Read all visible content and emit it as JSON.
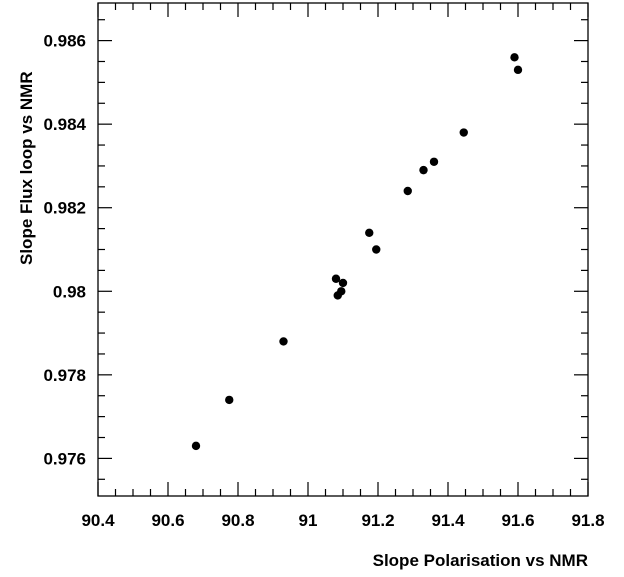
{
  "chart_data": {
    "type": "scatter",
    "title": "",
    "xlabel": "Slope Polarisation vs NMR",
    "ylabel": "Slope Flux loop vs NMR",
    "xlim": [
      90.4,
      91.8
    ],
    "ylim": [
      0.9751,
      0.9869
    ],
    "x_ticks": [
      {
        "value": 90.4,
        "label": "90.4"
      },
      {
        "value": 90.6,
        "label": "90.6"
      },
      {
        "value": 90.8,
        "label": "90.8"
      },
      {
        "value": 91.0,
        "label": "91"
      },
      {
        "value": 91.2,
        "label": "91.2"
      },
      {
        "value": 91.4,
        "label": "91.4"
      },
      {
        "value": 91.6,
        "label": "91.6"
      },
      {
        "value": 91.8,
        "label": "91.8"
      }
    ],
    "y_ticks": [
      {
        "value": 0.976,
        "label": "0.976"
      },
      {
        "value": 0.978,
        "label": "0.978"
      },
      {
        "value": 0.98,
        "label": "0.98"
      },
      {
        "value": 0.982,
        "label": "0.982"
      },
      {
        "value": 0.984,
        "label": "0.984"
      },
      {
        "value": 0.986,
        "label": "0.986"
      }
    ],
    "grid": false,
    "marker_color": "#000000",
    "points": [
      {
        "x": 90.68,
        "y": 0.9763
      },
      {
        "x": 90.775,
        "y": 0.9774
      },
      {
        "x": 90.93,
        "y": 0.9788
      },
      {
        "x": 91.08,
        "y": 0.9803
      },
      {
        "x": 91.085,
        "y": 0.9799
      },
      {
        "x": 91.095,
        "y": 0.98
      },
      {
        "x": 91.1,
        "y": 0.9802
      },
      {
        "x": 91.175,
        "y": 0.9814
      },
      {
        "x": 91.195,
        "y": 0.981
      },
      {
        "x": 91.285,
        "y": 0.9824
      },
      {
        "x": 91.33,
        "y": 0.9829
      },
      {
        "x": 91.36,
        "y": 0.9831
      },
      {
        "x": 91.445,
        "y": 0.9838
      },
      {
        "x": 91.59,
        "y": 0.9856
      },
      {
        "x": 91.6,
        "y": 0.9853
      }
    ]
  }
}
